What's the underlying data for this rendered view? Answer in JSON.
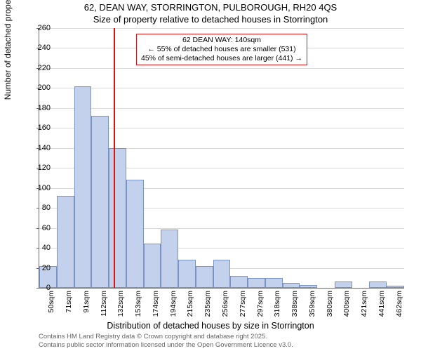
{
  "title": "62, DEAN WAY, STORRINGTON, PULBOROUGH, RH20 4QS",
  "subtitle": "Size of property relative to detached houses in Storrington",
  "ylabel": "Number of detached properties",
  "xlabel": "Distribution of detached houses by size in Storrington",
  "chart": {
    "type": "histogram",
    "ylim": [
      0,
      260
    ],
    "ytick_step": 20,
    "background_color": "#ffffff",
    "grid_color": "#d9d9d9",
    "axis_color": "#666666",
    "bar_fill": "#c3d1ec",
    "bar_border": "#7893c4",
    "marker_color": "#dd1111",
    "categories": [
      "50sqm",
      "71sqm",
      "91sqm",
      "112sqm",
      "132sqm",
      "153sqm",
      "174sqm",
      "194sqm",
      "215sqm",
      "235sqm",
      "256sqm",
      "277sqm",
      "297sqm",
      "318sqm",
      "338sqm",
      "359sqm",
      "380sqm",
      "400sqm",
      "421sqm",
      "441sqm",
      "462sqm"
    ],
    "values": [
      22,
      92,
      202,
      172,
      140,
      108,
      44,
      58,
      28,
      22,
      28,
      12,
      10,
      10,
      5,
      3,
      0,
      6,
      0,
      6,
      2
    ],
    "marker_index": 4.3,
    "title_fontsize": 13,
    "label_fontsize": 12,
    "tick_fontsize": 11
  },
  "annotation": {
    "line1": "62 DEAN WAY: 140sqm",
    "line2": "← 55% of detached houses are smaller (531)",
    "line3": "45% of semi-detached houses are larger (441) →"
  },
  "credits": {
    "line1": "Contains HM Land Registry data © Crown copyright and database right 2025.",
    "line2": "Contains public sector information licensed under the Open Government Licence v3.0."
  }
}
